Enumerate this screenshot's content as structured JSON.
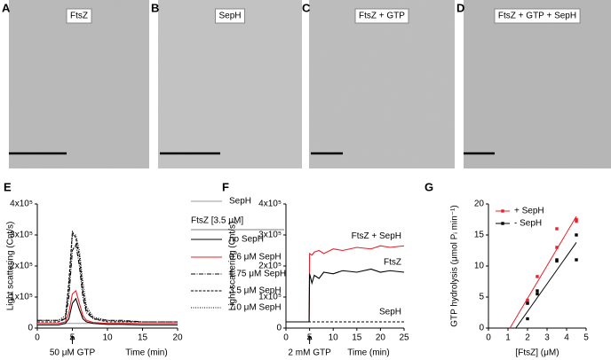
{
  "micrographs": [
    {
      "letter": "A",
      "label": "FtsZ"
    },
    {
      "letter": "B",
      "label": "SepH"
    },
    {
      "letter": "C",
      "label": "FtsZ + GTP"
    },
    {
      "letter": "D",
      "label": "FtsZ + GTP + SepH"
    }
  ],
  "chart_data": [
    {
      "type": "line",
      "panel": "E",
      "y_label": "Light scattering (Cnt/s)",
      "x_label": "Time (min)",
      "annotation": "50 μM GTP",
      "annotation_x": 5,
      "legend_title": "FtsZ [3.5 μM]",
      "x": [
        0,
        2,
        3,
        4,
        4.5,
        5,
        5.5,
        6,
        6.5,
        7,
        8,
        10,
        12,
        15,
        20
      ],
      "xlim": [
        0,
        20
      ],
      "xticks": [
        0,
        5,
        10,
        15,
        20
      ],
      "ylim": [
        0,
        400000
      ],
      "yticks": [
        0,
        {
          "value": 100000,
          "label": "1x10⁵"
        },
        {
          "value": 200000,
          "label": "2x10⁵"
        },
        {
          "value": 300000,
          "label": "3x10⁵"
        },
        {
          "value": 400000,
          "label": "4x10⁵"
        }
      ],
      "series": [
        {
          "name": "SepH",
          "color": "#999999",
          "dash": "",
          "values": [
            15000,
            15000,
            15000,
            15000,
            15000,
            15000,
            15000,
            15000,
            15000,
            15000,
            15000,
            15000,
            15000,
            15000,
            15000
          ]
        },
        {
          "name": "no SepH",
          "color": "#000000",
          "dash": "",
          "values": [
            10000,
            10000,
            10000,
            15000,
            30000,
            80000,
            95000,
            60000,
            30000,
            20000,
            15000,
            12000,
            12000,
            10000,
            10000
          ]
        },
        {
          "name": "0.6 μM SepH",
          "color": "#e8202a",
          "dash": "",
          "values": [
            15000,
            15000,
            15000,
            20000,
            50000,
            110000,
            120000,
            80000,
            40000,
            25000,
            18000,
            15000,
            15000,
            15000,
            15000
          ]
        },
        {
          "name": "1.75 μM SepH",
          "color": "#000000",
          "dash": "5 1.5 1 1.5",
          "values": [
            25000,
            25000,
            25000,
            30000,
            100000,
            250000,
            270000,
            200000,
            100000,
            50000,
            30000,
            25000,
            25000,
            20000,
            20000
          ]
        },
        {
          "name": "3.5 μM SepH",
          "color": "#000000",
          "dash": "3 1.5",
          "values": [
            20000,
            20000,
            20000,
            30000,
            150000,
            310000,
            290000,
            230000,
            120000,
            60000,
            30000,
            20000,
            20000,
            20000,
            20000
          ]
        },
        {
          "name": "7.0 μM SepH",
          "color": "#000000",
          "dash": "1 1.5",
          "values": [
            25000,
            25000,
            25000,
            40000,
            130000,
            300000,
            300000,
            250000,
            150000,
            70000,
            35000,
            25000,
            22000,
            20000,
            20000
          ]
        }
      ]
    },
    {
      "type": "line",
      "panel": "F",
      "y_label": "Light scattering (Cnt/s)",
      "x_label": "Time (min)",
      "annotation": "2 mM GTP",
      "annotation_x": 5,
      "x": [
        0,
        4.9,
        5,
        5.5,
        6,
        7,
        8,
        10,
        12,
        15,
        18,
        20,
        22,
        25
      ],
      "xlim": [
        0,
        25
      ],
      "xticks": [
        0,
        5,
        10,
        15,
        20,
        25
      ],
      "ylim": [
        0,
        400000
      ],
      "yticks": [
        0,
        {
          "value": 100000,
          "label": "1x10⁵"
        },
        {
          "value": 200000,
          "label": "2x10⁵"
        },
        {
          "value": 300000,
          "label": "3x10⁵"
        },
        {
          "value": 400000,
          "label": "4x10⁵"
        }
      ],
      "series": [
        {
          "name": "FtsZ + SepH",
          "color": "#e8202a",
          "dash": "",
          "values": [
            20000,
            20000,
            240000,
            235000,
            245000,
            250000,
            240000,
            255000,
            250000,
            260000,
            255000,
            265000,
            260000,
            265000
          ]
        },
        {
          "name": "FtsZ",
          "color": "#000000",
          "dash": "",
          "values": [
            20000,
            20000,
            175000,
            145000,
            170000,
            160000,
            180000,
            175000,
            185000,
            180000,
            190000,
            180000,
            185000,
            180000
          ]
        },
        {
          "name": "SepH",
          "color": "#000000",
          "dash": "3 2",
          "values": [
            20000,
            20000,
            20000,
            20000,
            20000,
            20000,
            20000,
            20000,
            20000,
            20000,
            20000,
            20000,
            20000,
            20000
          ]
        }
      ]
    },
    {
      "type": "scatter",
      "panel": "G",
      "y_label": "GTP hydrolysis (μmol Pᵢ min⁻¹)",
      "x_label": "[FtsZ] (μM)",
      "xlim": [
        0,
        5
      ],
      "xticks": [
        0,
        1,
        2,
        3,
        4,
        5
      ],
      "ylim": [
        0,
        20
      ],
      "yticks": [
        0,
        5,
        10,
        15,
        20
      ],
      "series": [
        {
          "name": "+ SepH",
          "color": "#e8202a",
          "x": [
            2,
            2,
            2.5,
            3.5,
            3.5,
            4.5,
            4.5
          ],
          "values": [
            4.5,
            4,
            8.3,
            13,
            16,
            17.5,
            17.2
          ],
          "fit_x": [
            1.1,
            4.5
          ],
          "fit_y": [
            0,
            18
          ]
        },
        {
          "name": "- SepH",
          "color": "#000000",
          "x": [
            2,
            2,
            2.5,
            2.5,
            3.5,
            3.5,
            4.5,
            4.5
          ],
          "values": [
            1.5,
            4,
            6,
            5.5,
            10.8,
            11,
            15,
            11
          ],
          "fit_x": [
            1.4,
            4.5
          ],
          "fit_y": [
            0,
            13.8
          ]
        }
      ]
    }
  ]
}
